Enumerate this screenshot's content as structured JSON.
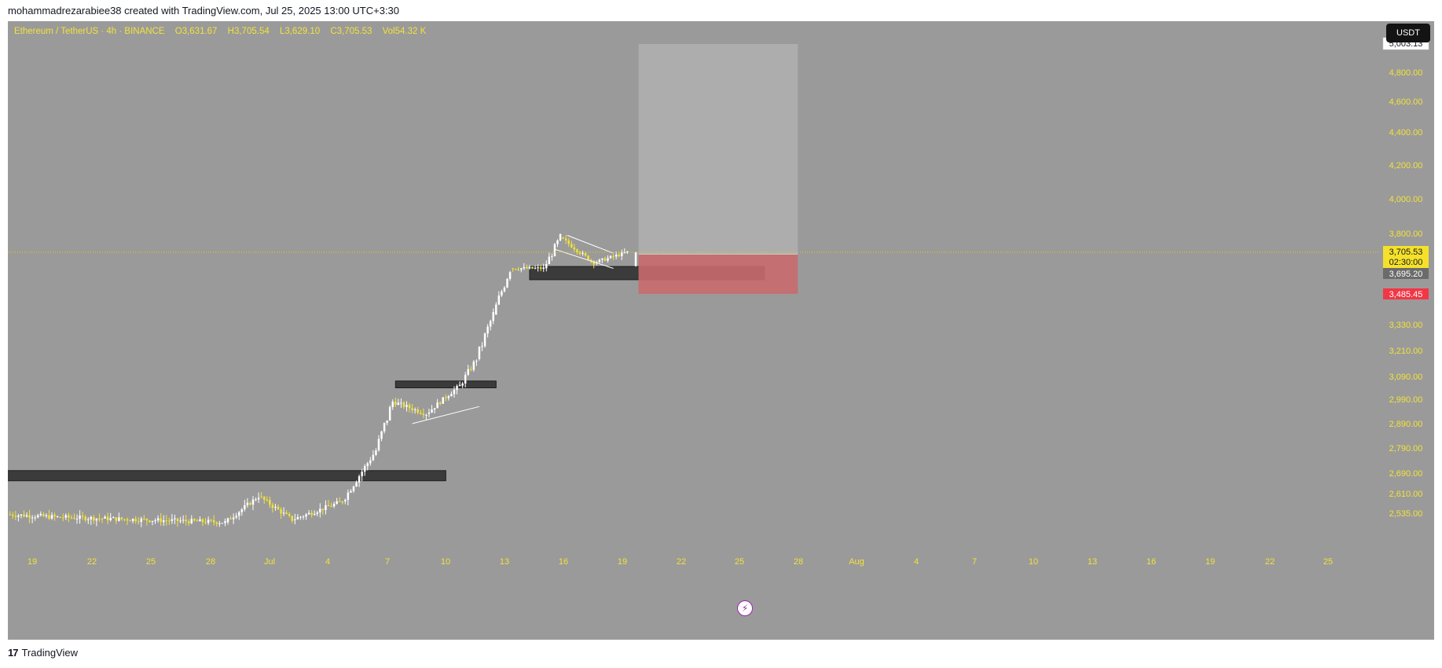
{
  "credit": "mohammadrezarabiee38 created with TradingView.com, Jul 25, 2025 13:00 UTC+3:30",
  "legend": {
    "symbol": "Ethereum / TetherUS · 4h · BINANCE",
    "o_label": "O",
    "o": "3,631.67",
    "h_label": "H",
    "h": "3,705.54",
    "l_label": "L",
    "l": "3,629.10",
    "c_label": "C",
    "c": "3,705.53",
    "vol_label": "Vol",
    "vol": "54.32 K"
  },
  "currency_badge": "USDT",
  "footer": {
    "logo": "17",
    "brand": "TradingView"
  },
  "colors": {
    "background": "#9a9a9a",
    "candle_up": "#ffffff",
    "candle_down": "#f2e23a",
    "axis_text": "#f2e23a",
    "stop_zone": "#c96a6e",
    "target_zone": "#b0b0b0",
    "price_line": "#e6d400",
    "stop_label": "#f23645"
  },
  "chart_data": {
    "type": "candlestick",
    "y_axis_ticks": [
      "5,003.13",
      "4,800.00",
      "4,600.00",
      "4,400.00",
      "4,200.00",
      "4,000.00",
      "3,800.00",
      "3,330.00",
      "3,210.00",
      "3,090.00",
      "2,990.00",
      "2,890.00",
      "2,790.00",
      "2,690.00",
      "2,610.00",
      "2,535.00"
    ],
    "y_axis_scale": "non-linear (as printed)",
    "x_axis_ticks": [
      "19",
      "22",
      "25",
      "28",
      "Jul",
      "4",
      "7",
      "10",
      "13",
      "16",
      "19",
      "22",
      "25",
      "28",
      "Aug",
      "4",
      "7",
      "10",
      "13",
      "16",
      "19",
      "22",
      "25"
    ],
    "price_labels": {
      "last_price": "3,705.53",
      "countdown": "02:30:00",
      "entry": "3,695.20",
      "stop": "3,485.45",
      "target": "5,003.13"
    },
    "long_position": {
      "entry": 3695.2,
      "stop": 3485.45,
      "target": 5003.13
    },
    "zones": [
      {
        "label": "support-zone-1",
        "low": 2660,
        "high": 2700
      },
      {
        "label": "support-zone-2",
        "low": 3040,
        "high": 3070
      },
      {
        "label": "support-zone-3",
        "low": 3560,
        "high": 3630
      }
    ],
    "candles_close_approx": [
      {
        "date": "2025-06-18",
        "close": 2530
      },
      {
        "date": "2025-06-21",
        "close": 2520
      },
      {
        "date": "2025-07-01",
        "close": 2500
      },
      {
        "date": "2025-07-03",
        "close": 2600
      },
      {
        "date": "2025-07-05",
        "close": 2510
      },
      {
        "date": "2025-07-08",
        "close": 2580
      },
      {
        "date": "2025-07-10",
        "close": 2780
      },
      {
        "date": "2025-07-11",
        "close": 2980
      },
      {
        "date": "2025-07-13",
        "close": 2930
      },
      {
        "date": "2025-07-15",
        "close": 3050
      },
      {
        "date": "2025-07-16",
        "close": 3170
      },
      {
        "date": "2025-07-17",
        "close": 3380
      },
      {
        "date": "2025-07-18",
        "close": 3620
      },
      {
        "date": "2025-07-20",
        "close": 3620
      },
      {
        "date": "2025-07-21",
        "close": 3780
      },
      {
        "date": "2025-07-23",
        "close": 3650
      },
      {
        "date": "2025-07-25",
        "close": 3705.53
      }
    ]
  }
}
